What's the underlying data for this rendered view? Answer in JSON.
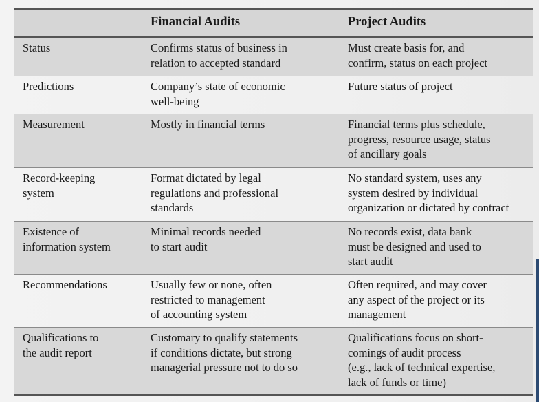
{
  "table": {
    "headers": [
      "",
      "Financial Audits",
      "Project Audits"
    ],
    "rows": [
      [
        "Status",
        "Confirms status of business in\nrelation to accepted standard",
        "Must create basis for, and\nconfirm, status on each project"
      ],
      [
        "Predictions",
        "Company’s state of economic\nwell-being",
        "Future status of project"
      ],
      [
        "Measurement",
        "Mostly in financial terms",
        "Financial terms plus schedule,\nprogress, resource usage, status\nof ancillary goals"
      ],
      [
        "Record-keeping\nsystem",
        "Format dictated by legal\nregulations and professional\nstandards",
        "No standard system, uses any\nsystem desired by individual\norganization or dictated by contract"
      ],
      [
        "Existence of\ninformation system",
        "Minimal records needed\nto start audit",
        "No records exist, data bank\nmust be designed and used to\nstart audit"
      ],
      [
        "Recommendations",
        "Usually few or none, often\nrestricted to management\nof accounting system",
        "Often required, and may cover\nany aspect of the project or its\nmanagement"
      ],
      [
        "Qualifications to\nthe audit report",
        "Customary to qualify statements\nif conditions dictate, but strong\nmanagerial pressure not to do so",
        "Qualifications focus on short-\ncomings of audit process\n(e.g., lack of technical expertise,\nlack of funds or time)"
      ]
    ]
  }
}
